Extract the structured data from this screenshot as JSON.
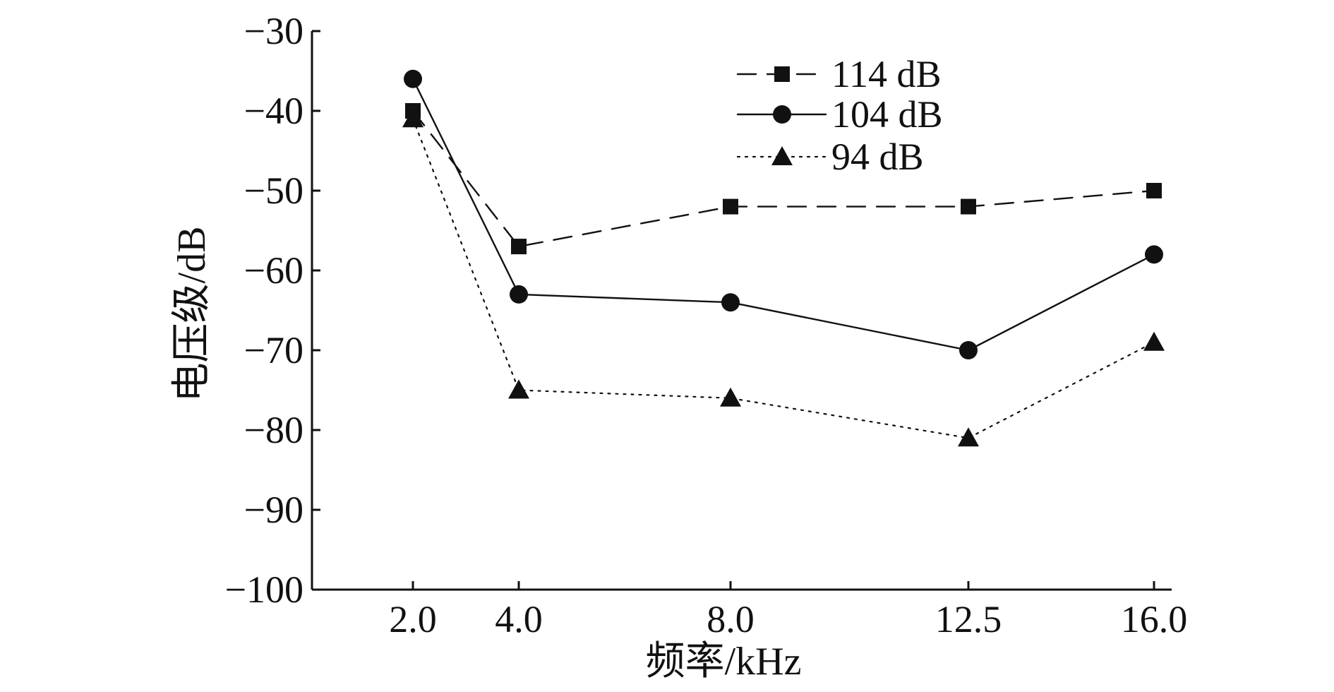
{
  "chart_data": {
    "type": "line",
    "title": "",
    "xlabel": "频率/kHz",
    "ylabel": "电压级/dB",
    "categories": [
      "2.0",
      "4.0",
      "8.0",
      "12.5",
      "16.0"
    ],
    "x": [
      2.0,
      4.0,
      8.0,
      12.5,
      16.0
    ],
    "ylim": [
      -100,
      -30
    ],
    "yticks": [
      -30,
      -40,
      -50,
      -60,
      -70,
      -80,
      -90,
      -100
    ],
    "ytick_labels": [
      "−30",
      "−40",
      "−50",
      "−60",
      "−70",
      "−80",
      "−90",
      "−100"
    ],
    "grid": false,
    "legend_position": "top-right",
    "series": [
      {
        "name": "114 dB",
        "values": [
          -40,
          -57,
          -52,
          -52,
          -50
        ],
        "line_style": "dashed",
        "marker": "square",
        "color": "#111111"
      },
      {
        "name": "104 dB",
        "values": [
          -36,
          -63,
          -64,
          -70,
          -58
        ],
        "line_style": "solid",
        "marker": "circle",
        "color": "#111111"
      },
      {
        "name": "94 dB",
        "values": [
          -41,
          -75,
          -76,
          -81,
          -69
        ],
        "line_style": "dotted",
        "marker": "triangle",
        "color": "#111111"
      }
    ]
  }
}
